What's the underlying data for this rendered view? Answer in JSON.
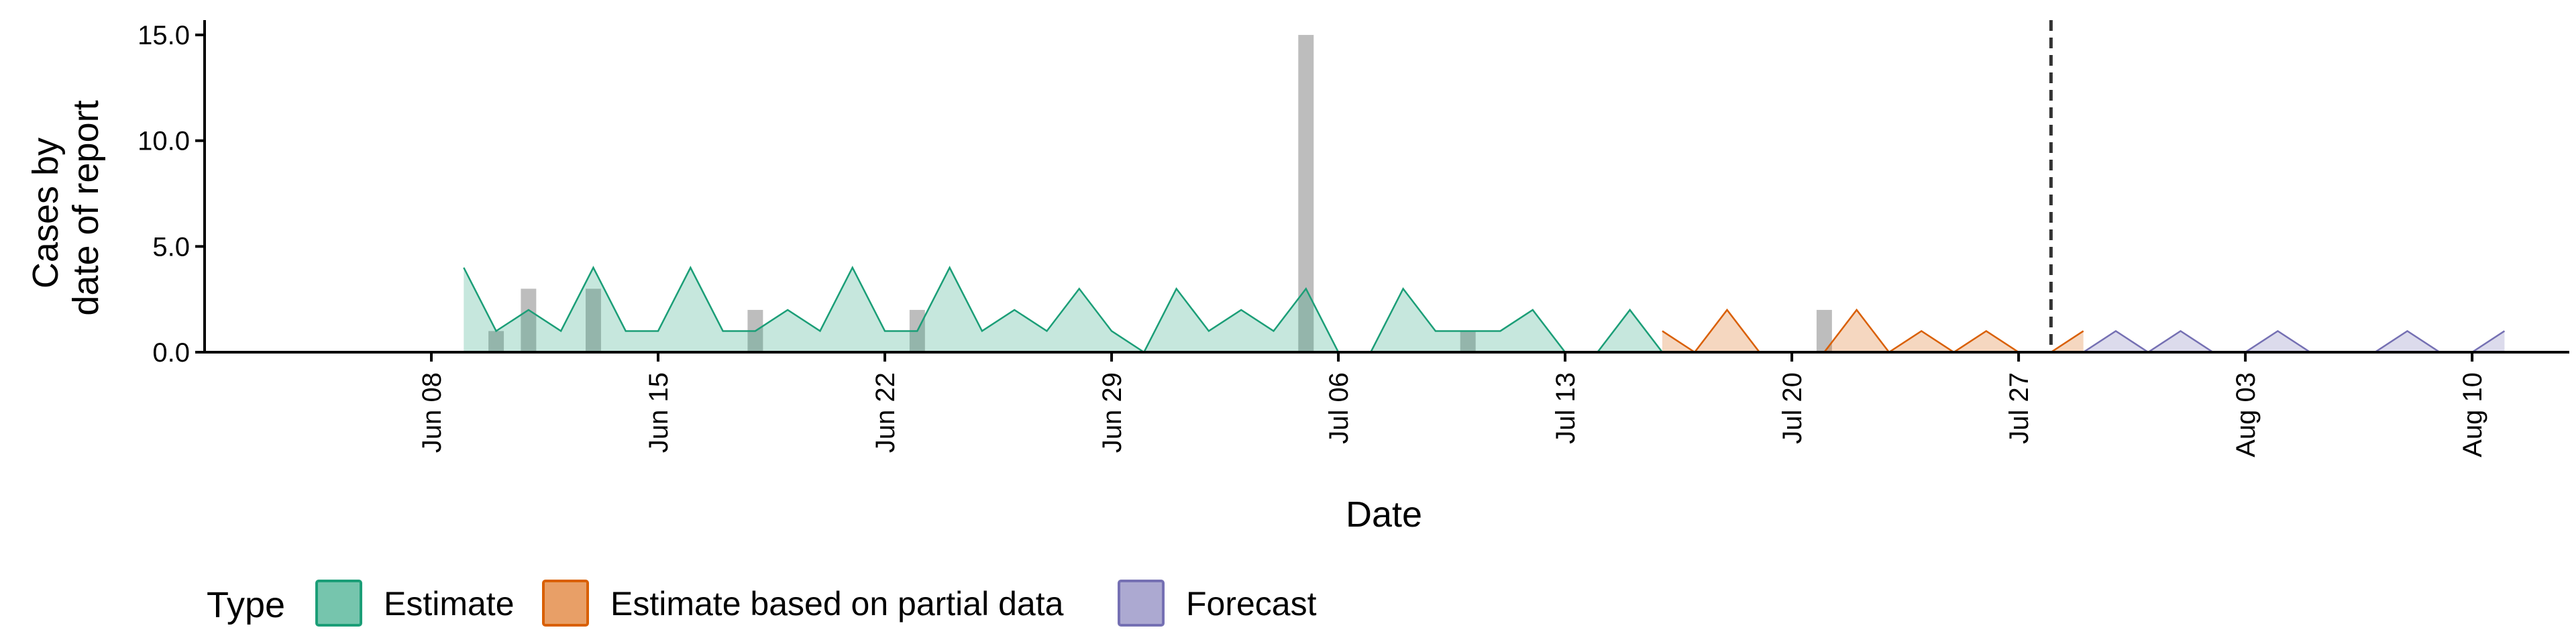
{
  "chart_data": {
    "type": "area",
    "title": "",
    "xlabel": "Date",
    "ylabel_lines": [
      "Cases by",
      "date of report"
    ],
    "ylim": [
      0,
      15.7
    ],
    "yticks": [
      0,
      5,
      10,
      15
    ],
    "ytick_labels": [
      "0.0",
      "5.0",
      "10.0",
      "15.0"
    ],
    "xlim": [
      "2020-06-01",
      "2020-08-13"
    ],
    "xticks": [
      "2020-06-08",
      "2020-06-15",
      "2020-06-22",
      "2020-06-29",
      "2020-07-06",
      "2020-07-13",
      "2020-07-20",
      "2020-07-27",
      "2020-08-03",
      "2020-08-10"
    ],
    "xtick_labels": [
      "Jun 08",
      "Jun 15",
      "Jun 22",
      "Jun 29",
      "Jul 06",
      "Jul 13",
      "Jul 20",
      "Jul 27",
      "Aug 03",
      "Aug 10"
    ],
    "vline": "2020-07-28",
    "legend": {
      "title": "Type",
      "position": "bottom",
      "entries": [
        "Estimate",
        "Estimate based on partial data",
        "Forecast"
      ]
    },
    "colors": {
      "Estimate": {
        "line": "#1b9e77",
        "fill": "#1b9e77"
      },
      "Estimate based on partial data": {
        "line": "#d95f02",
        "fill": "#d95f02"
      },
      "Forecast": {
        "line": "#7570b3",
        "fill": "#7570b3"
      },
      "bars": "#bdbdbd",
      "vline": "#333333"
    },
    "bars": [
      {
        "date": "2020-06-10",
        "value": 1
      },
      {
        "date": "2020-06-11",
        "value": 3
      },
      {
        "date": "2020-06-13",
        "value": 3
      },
      {
        "date": "2020-06-18",
        "value": 2
      },
      {
        "date": "2020-06-23",
        "value": 2
      },
      {
        "date": "2020-07-05",
        "value": 15
      },
      {
        "date": "2020-07-10",
        "value": 1
      },
      {
        "date": "2020-07-21",
        "value": 2
      }
    ],
    "series": [
      {
        "name": "Estimate",
        "start": "2020-06-09",
        "values": [
          4,
          1,
          2,
          1,
          4,
          1,
          1,
          4,
          1,
          1,
          2,
          1,
          4,
          1,
          1,
          4,
          1,
          2,
          1,
          3,
          1,
          0,
          3,
          1,
          2,
          1,
          3,
          0,
          0,
          3,
          1,
          1,
          1,
          2,
          0,
          0,
          2,
          0
        ]
      },
      {
        "name": "Estimate based on partial data",
        "start": "2020-07-16",
        "values": [
          1,
          0,
          2,
          0,
          0,
          0,
          2,
          0,
          1,
          0,
          1,
          0,
          0,
          1
        ]
      },
      {
        "name": "Forecast",
        "start": "2020-07-29",
        "values": [
          0,
          1,
          0,
          1,
          0,
          0,
          1,
          0,
          0,
          0,
          1,
          0,
          0,
          1
        ]
      }
    ]
  }
}
